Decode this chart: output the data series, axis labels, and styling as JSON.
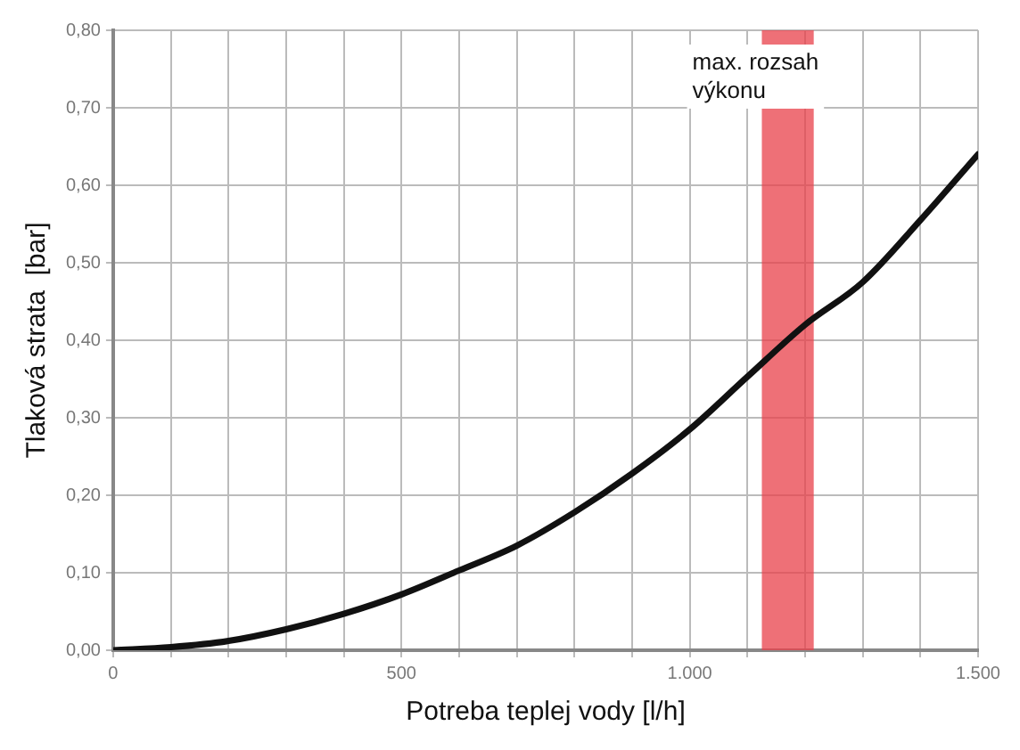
{
  "chart_data": {
    "type": "line",
    "xlabel": "Potreba teplej vody [l/h]",
    "ylabel": "Tlaková strata  [bar]",
    "x": [
      0,
      100,
      200,
      300,
      400,
      500,
      600,
      700,
      800,
      900,
      1000,
      1100,
      1200,
      1300,
      1400,
      1500
    ],
    "series": [
      {
        "color": "#111111",
        "values": [
          0,
          0.004,
          0.012,
          0.027,
          0.047,
          0.072,
          0.103,
          0.135,
          0.178,
          0.228,
          0.285,
          0.353,
          0.42,
          0.475,
          0.555,
          0.64
        ]
      }
    ],
    "xlim": [
      0,
      1500
    ],
    "xticks": [
      {
        "value": 0,
        "label": "0"
      },
      {
        "value": 100,
        "label": null
      },
      {
        "value": 200,
        "label": null
      },
      {
        "value": 300,
        "label": null
      },
      {
        "value": 400,
        "label": null
      },
      {
        "value": 500,
        "label": "500"
      },
      {
        "value": 600,
        "label": null
      },
      {
        "value": 700,
        "label": null
      },
      {
        "value": 800,
        "label": null
      },
      {
        "value": 900,
        "label": null
      },
      {
        "value": 1000,
        "label": "1.000"
      },
      {
        "value": 1100,
        "label": null
      },
      {
        "value": 1200,
        "label": null
      },
      {
        "value": 1300,
        "label": null
      },
      {
        "value": 1400,
        "label": null
      },
      {
        "value": 1500,
        "label": "1.500"
      }
    ],
    "ylim": [
      0,
      0.8
    ],
    "yticks": [
      {
        "value": 0,
        "label": "0,00"
      },
      {
        "value": 0.1,
        "label": "0,10"
      },
      {
        "value": 0.2,
        "label": "0,20"
      },
      {
        "value": 0.3,
        "label": "0,30"
      },
      {
        "value": 0.4,
        "label": "0,40"
      },
      {
        "value": 0.5,
        "label": "0,50"
      },
      {
        "value": 0.6,
        "label": "0,60"
      },
      {
        "value": 0.7,
        "label": "0,70"
      },
      {
        "value": 0.8,
        "label": "0,80"
      }
    ],
    "bands": [
      {
        "axis": "x",
        "from": 1125,
        "to": 1215,
        "label": "max. rozsah výkonu",
        "color": "#e8404a"
      }
    ],
    "grid": true,
    "legend": false,
    "marker": "none",
    "line_style": "solid"
  }
}
